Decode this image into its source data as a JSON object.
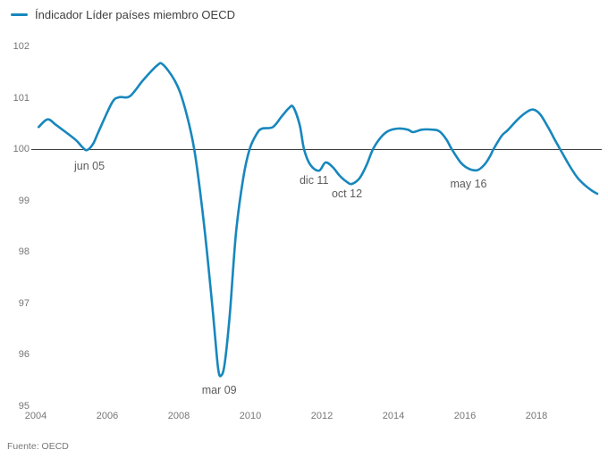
{
  "legend": {
    "label": "Índicador Líder países miembro OECD"
  },
  "source": {
    "note": "Fuente: OECD"
  },
  "colors": {
    "line": "#1787bd",
    "reference_line": "#3f3f3f",
    "tick_text": "#767676",
    "annotation_text": "#5d5d5d",
    "legend_text": "#404040",
    "background": "#ffffff"
  },
  "chart_data": {
    "type": "line",
    "title": "",
    "xlabel": "",
    "ylabel": "",
    "legend_position": "top-left",
    "grid": false,
    "xlim": [
      2003.8,
      2019.9
    ],
    "ylim": [
      95,
      102
    ],
    "x_ticks": [
      2004,
      2006,
      2008,
      2010,
      2012,
      2014,
      2016,
      2018
    ],
    "y_ticks": [
      95,
      96,
      97,
      98,
      99,
      100,
      101,
      102
    ],
    "reference_line_y": 100,
    "series": [
      {
        "name": "Índicador Líder países miembro OECD",
        "color": "#1787bd",
        "points": [
          [
            2004.08,
            100.43
          ],
          [
            2004.33,
            100.58
          ],
          [
            2004.55,
            100.48
          ],
          [
            2004.8,
            100.35
          ],
          [
            2005.13,
            100.17
          ],
          [
            2005.3,
            100.04
          ],
          [
            2005.43,
            99.98
          ],
          [
            2005.6,
            100.1
          ],
          [
            2005.75,
            100.33
          ],
          [
            2006.13,
            100.9
          ],
          [
            2006.33,
            101.01
          ],
          [
            2006.63,
            101.03
          ],
          [
            2007.0,
            101.34
          ],
          [
            2007.38,
            101.62
          ],
          [
            2007.55,
            101.65
          ],
          [
            2007.88,
            101.34
          ],
          [
            2008.13,
            100.9
          ],
          [
            2008.43,
            100.0
          ],
          [
            2008.7,
            98.56
          ],
          [
            2008.93,
            96.99
          ],
          [
            2009.02,
            96.3
          ],
          [
            2009.1,
            95.72
          ],
          [
            2009.17,
            95.58
          ],
          [
            2009.28,
            95.81
          ],
          [
            2009.43,
            96.82
          ],
          [
            2009.6,
            98.38
          ],
          [
            2009.8,
            99.43
          ],
          [
            2009.98,
            100.0
          ],
          [
            2010.18,
            100.3
          ],
          [
            2010.33,
            100.4
          ],
          [
            2010.63,
            100.43
          ],
          [
            2010.88,
            100.64
          ],
          [
            2011.08,
            100.8
          ],
          [
            2011.2,
            100.82
          ],
          [
            2011.38,
            100.47
          ],
          [
            2011.5,
            100.0
          ],
          [
            2011.68,
            99.69
          ],
          [
            2011.92,
            99.58
          ],
          [
            2012.1,
            99.74
          ],
          [
            2012.3,
            99.65
          ],
          [
            2012.5,
            99.48
          ],
          [
            2012.7,
            99.36
          ],
          [
            2012.83,
            99.32
          ],
          [
            2013.05,
            99.43
          ],
          [
            2013.25,
            99.69
          ],
          [
            2013.43,
            100.0
          ],
          [
            2013.65,
            100.23
          ],
          [
            2013.85,
            100.35
          ],
          [
            2014.13,
            100.4
          ],
          [
            2014.4,
            100.38
          ],
          [
            2014.55,
            100.33
          ],
          [
            2014.8,
            100.38
          ],
          [
            2015.08,
            100.38
          ],
          [
            2015.28,
            100.35
          ],
          [
            2015.48,
            100.19
          ],
          [
            2015.63,
            100.0
          ],
          [
            2015.88,
            99.74
          ],
          [
            2016.1,
            99.62
          ],
          [
            2016.35,
            99.59
          ],
          [
            2016.55,
            99.7
          ],
          [
            2016.7,
            99.86
          ],
          [
            2016.8,
            100.0
          ],
          [
            2017.03,
            100.26
          ],
          [
            2017.2,
            100.37
          ],
          [
            2017.45,
            100.56
          ],
          [
            2017.7,
            100.71
          ],
          [
            2017.9,
            100.77
          ],
          [
            2018.1,
            100.68
          ],
          [
            2018.33,
            100.42
          ],
          [
            2018.53,
            100.16
          ],
          [
            2018.7,
            99.95
          ],
          [
            2018.93,
            99.67
          ],
          [
            2019.15,
            99.44
          ],
          [
            2019.35,
            99.3
          ],
          [
            2019.55,
            99.19
          ],
          [
            2019.7,
            99.13
          ]
        ]
      }
    ],
    "annotations": [
      {
        "label": "jun 05",
        "x": 2005.5,
        "y": 99.67
      },
      {
        "label": "mar 09",
        "x": 2009.13,
        "y": 95.3
      },
      {
        "label": "dic 11",
        "x": 2011.78,
        "y": 99.39
      },
      {
        "label": "oct 12",
        "x": 2012.7,
        "y": 99.13
      },
      {
        "label": "may 16",
        "x": 2016.1,
        "y": 99.32
      }
    ]
  }
}
